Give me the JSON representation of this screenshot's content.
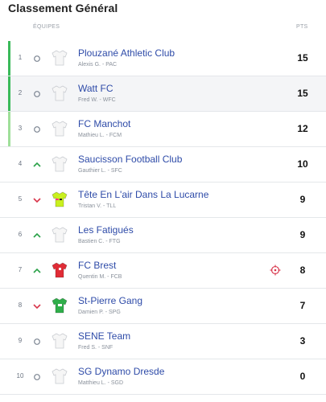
{
  "title": "Classement Général",
  "headers": {
    "team": "ÉQUIPES",
    "pts": "PTS"
  },
  "colors": {
    "accent": "#3aba5a",
    "accent_light": "#9fdf9a",
    "link": "#2e4ba8",
    "up": "#2aa148",
    "down": "#d8344a"
  },
  "rows": [
    {
      "rank": "1",
      "trend": "same",
      "jersey": "white",
      "name": "Plouzané Athletic Club",
      "sub": "Alexis G. - PAC",
      "pts": "15",
      "bar": "dark",
      "shaded": false,
      "target": false
    },
    {
      "rank": "2",
      "trend": "same",
      "jersey": "white",
      "name": "Watt FC",
      "sub": "Fred W. - WFC",
      "pts": "15",
      "bar": "dark",
      "shaded": true,
      "target": false
    },
    {
      "rank": "3",
      "trend": "same",
      "jersey": "white",
      "name": "FC Manchot",
      "sub": "Mathieu L. - FCM",
      "pts": "12",
      "bar": "light",
      "shaded": false,
      "target": false
    },
    {
      "rank": "4",
      "trend": "up",
      "jersey": "white",
      "name": "Saucisson Football Club",
      "sub": "Gauthier L. - SFC",
      "pts": "10",
      "bar": "",
      "shaded": false,
      "target": false
    },
    {
      "rank": "5",
      "trend": "down",
      "jersey": "yellow",
      "name": "Tête En L'air Dans La Lucarne",
      "sub": "Tristan V. - TLL",
      "pts": "9",
      "bar": "",
      "shaded": false,
      "target": false
    },
    {
      "rank": "6",
      "trend": "up",
      "jersey": "white",
      "name": "Les Fatigués",
      "sub": "Bastien C. - FTG",
      "pts": "9",
      "bar": "",
      "shaded": false,
      "target": false
    },
    {
      "rank": "7",
      "trend": "up",
      "jersey": "red",
      "name": "FC Brest",
      "sub": "Quentin M. - FCB",
      "pts": "8",
      "bar": "",
      "shaded": false,
      "target": true
    },
    {
      "rank": "8",
      "trend": "down",
      "jersey": "green",
      "name": "St-Pierre Gang",
      "sub": "Damien P. - SPG",
      "pts": "7",
      "bar": "",
      "shaded": false,
      "target": false
    },
    {
      "rank": "9",
      "trend": "same",
      "jersey": "white",
      "name": "SENE Team",
      "sub": "Fred S. - SNF",
      "pts": "3",
      "bar": "",
      "shaded": false,
      "target": false
    },
    {
      "rank": "10",
      "trend": "same",
      "jersey": "white",
      "name": "SG Dynamo Dresde",
      "sub": "Matthieu L. - SGD",
      "pts": "0",
      "bar": "",
      "shaded": false,
      "target": false
    }
  ]
}
